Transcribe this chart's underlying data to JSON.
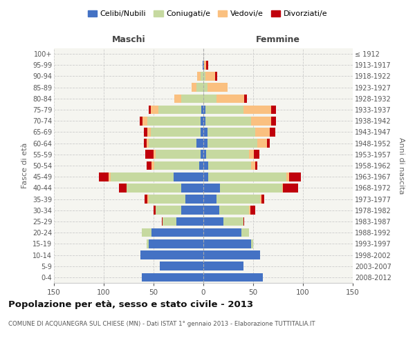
{
  "age_groups": [
    "0-4",
    "5-9",
    "10-14",
    "15-19",
    "20-24",
    "25-29",
    "30-34",
    "35-39",
    "40-44",
    "45-49",
    "50-54",
    "55-59",
    "60-64",
    "65-69",
    "70-74",
    "75-79",
    "80-84",
    "85-89",
    "90-94",
    "95-99",
    "100+"
  ],
  "birth_years": [
    "2008-2012",
    "2003-2007",
    "1998-2002",
    "1993-1997",
    "1988-1992",
    "1983-1987",
    "1978-1982",
    "1973-1977",
    "1968-1972",
    "1963-1967",
    "1958-1962",
    "1953-1957",
    "1948-1952",
    "1943-1947",
    "1938-1942",
    "1933-1937",
    "1928-1932",
    "1923-1927",
    "1918-1922",
    "1913-1917",
    "≤ 1912"
  ],
  "males": {
    "celibi": [
      62,
      44,
      63,
      55,
      52,
      27,
      22,
      18,
      22,
      30,
      4,
      3,
      7,
      3,
      3,
      2,
      0,
      0,
      0,
      1,
      0
    ],
    "coniugati": [
      0,
      0,
      0,
      2,
      10,
      14,
      26,
      37,
      55,
      63,
      45,
      45,
      48,
      50,
      53,
      43,
      22,
      7,
      3,
      0,
      0
    ],
    "vedovi": [
      0,
      0,
      0,
      0,
      0,
      0,
      0,
      1,
      0,
      2,
      3,
      2,
      2,
      3,
      5,
      8,
      7,
      5,
      3,
      0,
      0
    ],
    "divorziati": [
      0,
      0,
      0,
      0,
      0,
      1,
      2,
      3,
      8,
      10,
      5,
      8,
      3,
      4,
      3,
      2,
      0,
      0,
      0,
      0,
      0
    ]
  },
  "females": {
    "nubili": [
      60,
      40,
      57,
      48,
      38,
      20,
      16,
      13,
      17,
      5,
      5,
      3,
      4,
      4,
      2,
      2,
      0,
      0,
      0,
      1,
      0
    ],
    "coniugate": [
      0,
      0,
      0,
      2,
      8,
      20,
      30,
      44,
      62,
      78,
      43,
      43,
      50,
      48,
      46,
      38,
      13,
      4,
      2,
      0,
      0
    ],
    "vedove": [
      0,
      0,
      0,
      0,
      0,
      0,
      1,
      1,
      1,
      3,
      4,
      5,
      10,
      15,
      20,
      28,
      28,
      20,
      10,
      2,
      0
    ],
    "divorziate": [
      0,
      0,
      0,
      0,
      0,
      1,
      5,
      3,
      15,
      12,
      2,
      5,
      3,
      5,
      5,
      5,
      3,
      0,
      2,
      2,
      0
    ]
  },
  "color_celibi": "#4472c4",
  "color_coniugati": "#c6d9a0",
  "color_vedovi": "#fac080",
  "color_divorziati": "#c0000c",
  "xlim": 150,
  "title": "Popolazione per età, sesso e stato civile - 2013",
  "subtitle": "COMUNE DI ACQUANEGRA SUL CHIESE (MN) - Dati ISTAT 1° gennaio 2013 - Elaborazione TUTTITALIA.IT",
  "ylabel_left": "Fasce di età",
  "ylabel_right": "Anni di nascita",
  "xlabel_males": "Maschi",
  "xlabel_females": "Femmine",
  "bg_color": "#f5f5f0",
  "grid_color": "#cccccc"
}
